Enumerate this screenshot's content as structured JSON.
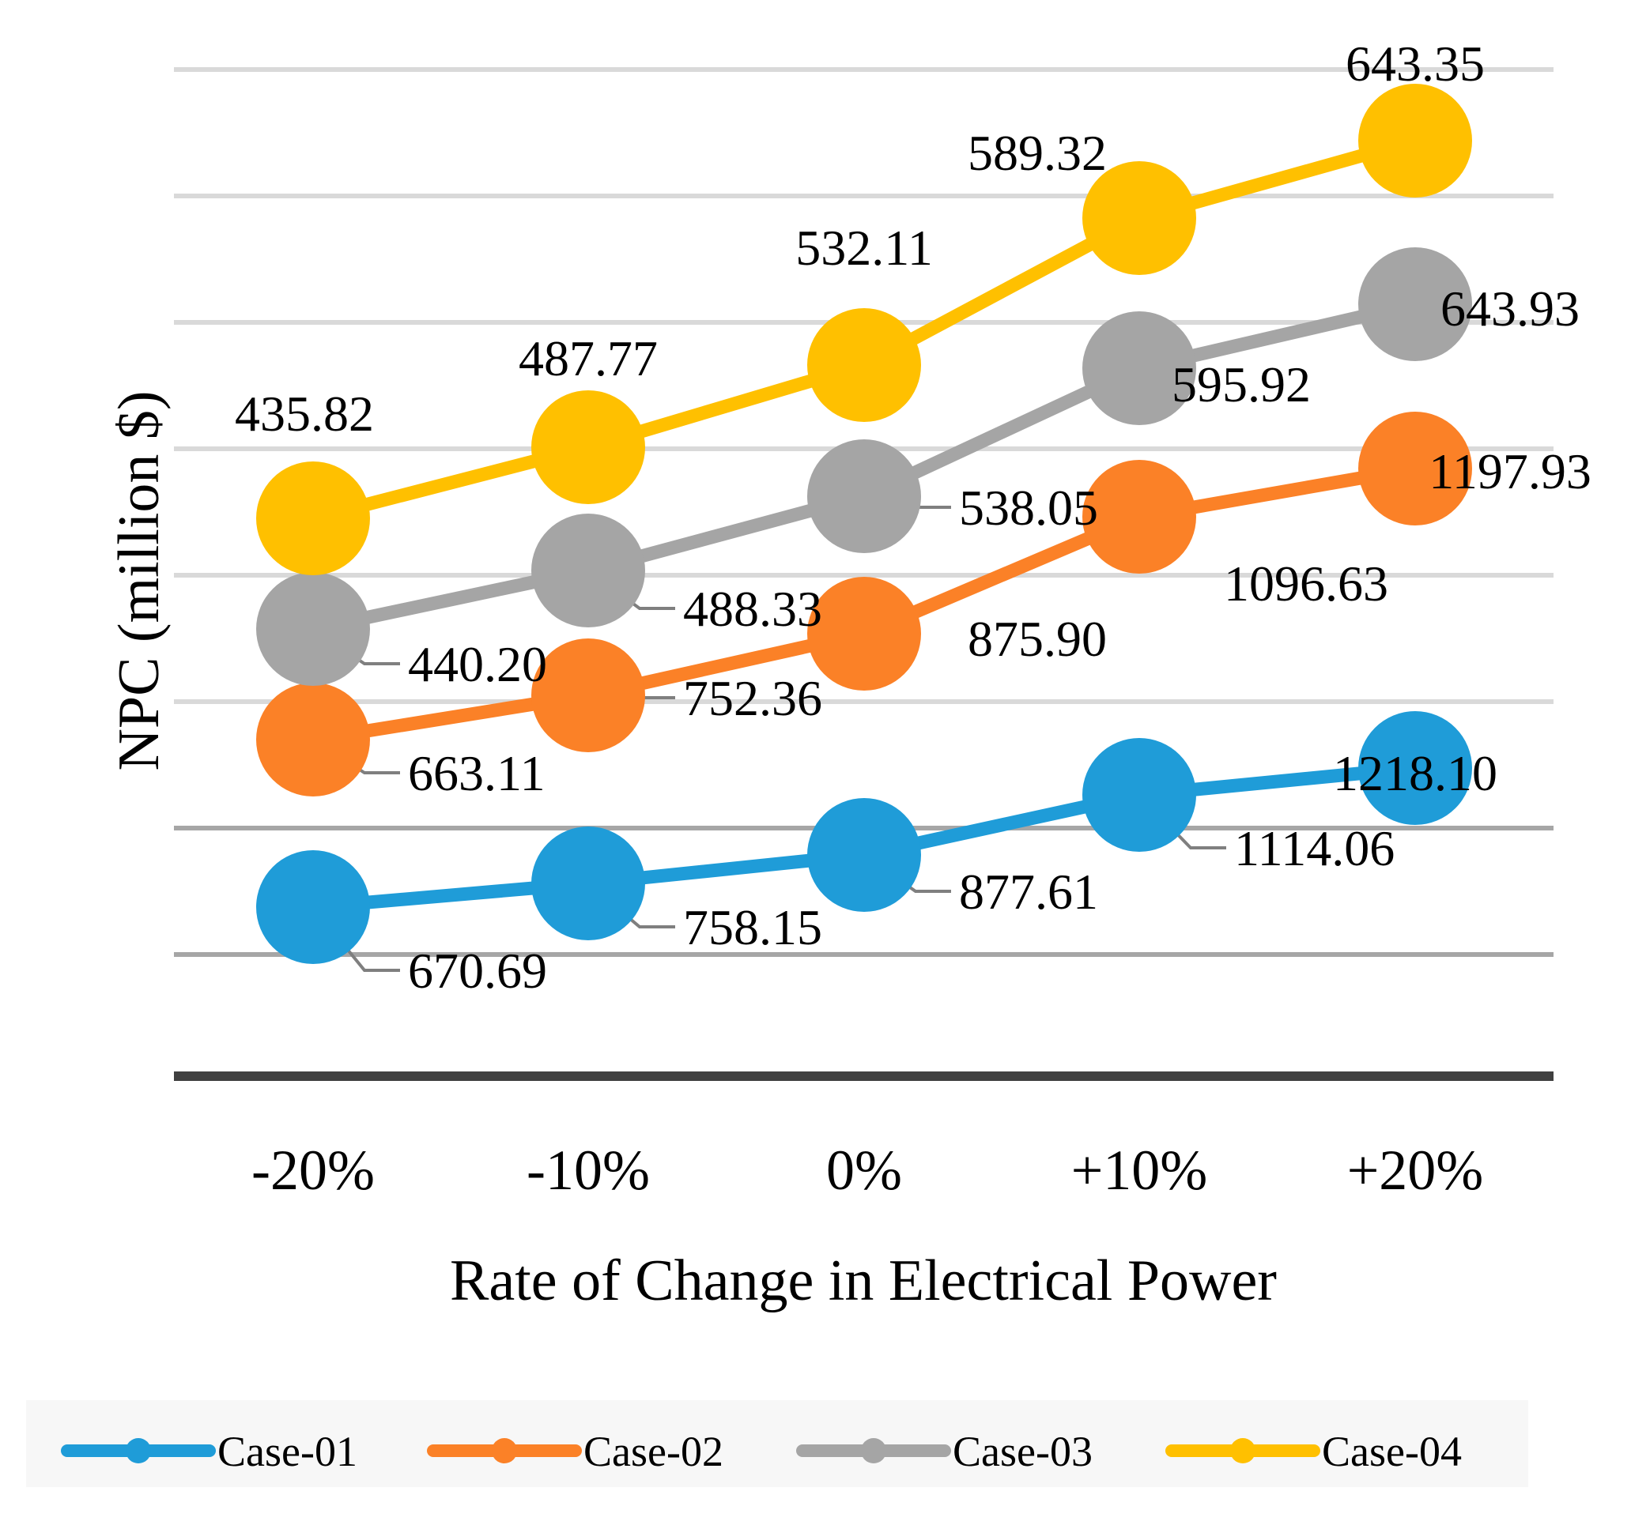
{
  "chart_data": {
    "type": "line",
    "title": "",
    "xlabel": "Rate of Change in Electrical Power",
    "ylabel": "NPC (million $)",
    "categories": [
      "-20%",
      "-10%",
      "0%",
      "+10%",
      "+20%"
    ],
    "grid": true,
    "y_tick_labels_shown": false,
    "legend_position": "bottom",
    "series": [
      {
        "name": "Case-01",
        "color": "#1F9CD8",
        "values": [
          670.69,
          758.15,
          877.61,
          1114.06,
          1218.1
        ],
        "labels": [
          "670.69",
          "758.15",
          "877.61",
          "1114.06",
          "1218.10"
        ]
      },
      {
        "name": "Case-02",
        "color": "#FB8127",
        "values": [
          663.11,
          752.36,
          875.9,
          1096.63,
          1197.93
        ],
        "labels": [
          "663.11",
          "752.36",
          "875.90",
          "1096.63",
          "1197.93"
        ]
      },
      {
        "name": "Case-03",
        "color": "#A5A5A5",
        "values": [
          440.2,
          488.33,
          538.05,
          595.92,
          643.93
        ],
        "labels": [
          "440.20",
          "488.33",
          "538.05",
          "595.92",
          "643.93"
        ]
      },
      {
        "name": "Case-04",
        "color": "#FFC000",
        "values": [
          435.82,
          487.77,
          532.11,
          589.32,
          643.35
        ],
        "labels": [
          "435.82",
          "487.77",
          "532.11",
          "589.32",
          "643.35"
        ]
      }
    ]
  }
}
